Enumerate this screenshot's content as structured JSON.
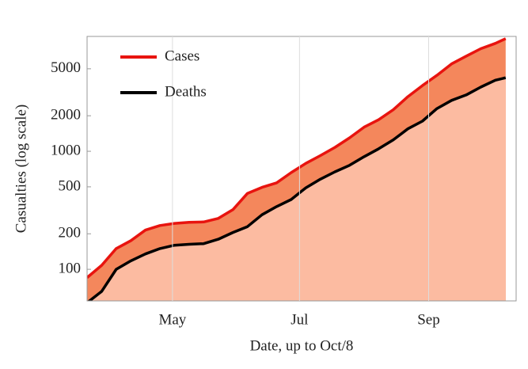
{
  "chart_data": {
    "type": "area-line",
    "log_y": true,
    "grid": true,
    "xlabel": "Date, up to Oct/8",
    "ylabel": "Casualties (log scale)",
    "x": [
      20,
      27,
      34,
      41,
      48,
      55,
      62,
      69,
      76,
      83,
      90,
      97,
      104,
      111,
      118,
      125,
      132,
      139,
      146,
      153,
      160,
      167,
      174,
      181,
      188,
      195,
      202,
      209,
      216,
      221
    ],
    "xlim": [
      20,
      226
    ],
    "xticks": [
      {
        "value": 61,
        "label": "May"
      },
      {
        "value": 122,
        "label": "Jul"
      },
      {
        "value": 184,
        "label": "Sep"
      }
    ],
    "ylim": [
      54,
      9400
    ],
    "yticks": [
      100,
      200,
      500,
      1000,
      2000,
      5000
    ],
    "legend": "top-left",
    "series": [
      {
        "name": "Cases",
        "color": "#e8140f",
        "fill": "#f4875c",
        "values": [
          85,
          108,
          150,
          175,
          215,
          235,
          245,
          250,
          252,
          270,
          320,
          440,
          495,
          540,
          660,
          790,
          920,
          1080,
          1300,
          1600,
          1850,
          2250,
          2900,
          3600,
          4400,
          5500,
          6400,
          7400,
          8200,
          9000
        ]
      },
      {
        "name": "Deaths",
        "color": "#000000",
        "fill": "#fcbba1",
        "values": [
          52,
          65,
          100,
          118,
          135,
          150,
          160,
          163,
          165,
          180,
          205,
          230,
          290,
          340,
          390,
          490,
          580,
          670,
          760,
          900,
          1050,
          1250,
          1550,
          1800,
          2300,
          2700,
          3000,
          3500,
          4000,
          4200
        ]
      }
    ]
  }
}
